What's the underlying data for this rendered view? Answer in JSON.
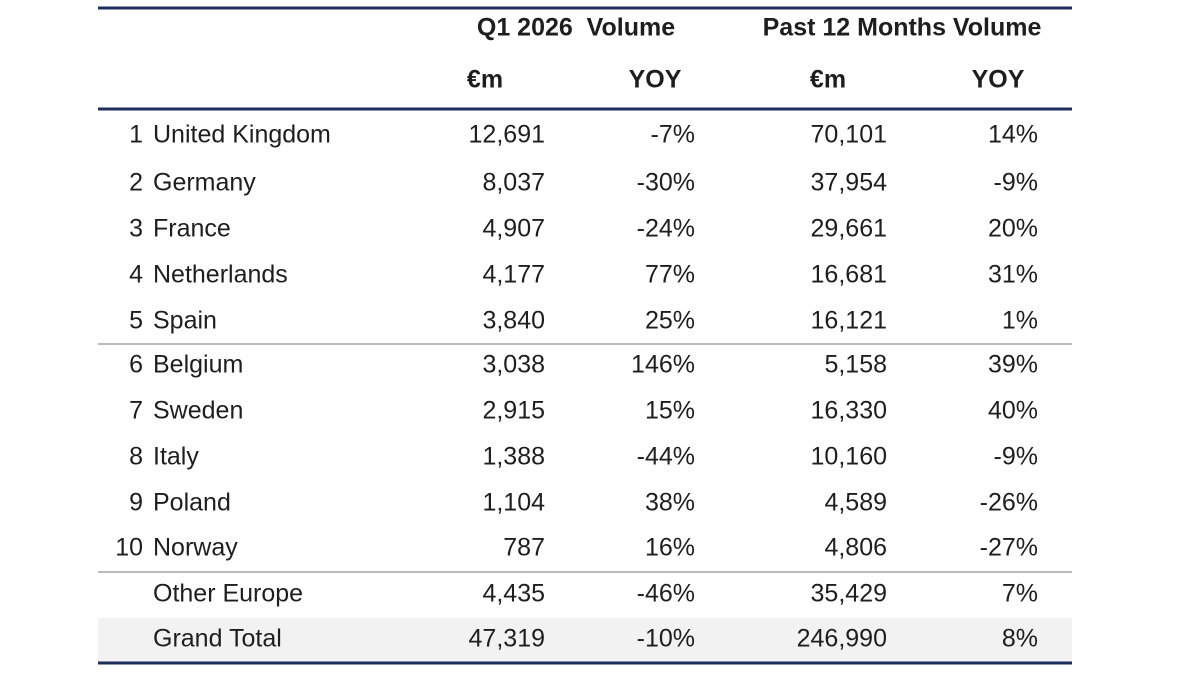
{
  "table": {
    "group_headers": [
      "Q1 2026  Volume",
      "Past 12 Months Volume"
    ],
    "sub_headers": [
      "€m",
      "YOY",
      "€m",
      "YOY"
    ],
    "rows": [
      {
        "rank": "1",
        "name": "United Kingdom",
        "cells": [
          "12,691",
          "-7%",
          "70,101",
          "14%"
        ]
      },
      {
        "rank": "2",
        "name": "Germany",
        "cells": [
          "8,037",
          "-30%",
          "37,954",
          "-9%"
        ]
      },
      {
        "rank": "3",
        "name": "France",
        "cells": [
          "4,907",
          "-24%",
          "29,661",
          "20%"
        ]
      },
      {
        "rank": "4",
        "name": "Netherlands",
        "cells": [
          "4,177",
          "77%",
          "16,681",
          "31%"
        ]
      },
      {
        "rank": "5",
        "name": "Spain",
        "cells": [
          "3,840",
          "25%",
          "16,121",
          "1%"
        ]
      },
      {
        "rank": "6",
        "name": "Belgium",
        "cells": [
          "3,038",
          "146%",
          "5,158",
          "39%"
        ]
      },
      {
        "rank": "7",
        "name": "Sweden",
        "cells": [
          "2,915",
          "15%",
          "16,330",
          "40%"
        ]
      },
      {
        "rank": "8",
        "name": "Italy",
        "cells": [
          "1,388",
          "-44%",
          "10,160",
          "-9%"
        ]
      },
      {
        "rank": "9",
        "name": "Poland",
        "cells": [
          "1,104",
          "38%",
          "4,589",
          "-26%"
        ]
      },
      {
        "rank": "10",
        "name": "Norway",
        "cells": [
          "787",
          "16%",
          "4,806",
          "-27%"
        ]
      },
      {
        "name": "Other Europe",
        "cells": [
          "4,435",
          "-46%",
          "35,429",
          "7%"
        ]
      },
      {
        "name": "Grand Total",
        "cells": [
          "47,319",
          "-10%",
          "246,990",
          "8%"
        ]
      }
    ]
  }
}
